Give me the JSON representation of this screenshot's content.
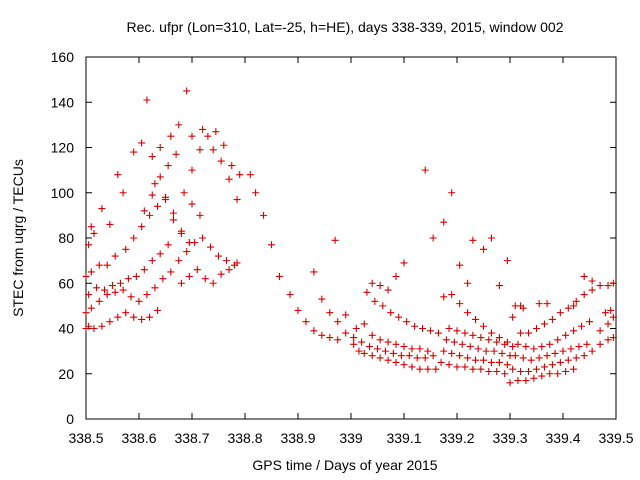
{
  "chart_data": {
    "type": "scatter",
    "title": "Rec. ufpr (Lon=310, Lat=-25, h=HE), days 338-339, 2015, window 002",
    "xlabel": "GPS time / Days of year 2015",
    "ylabel": "STEC from uqrg / TECUs",
    "xlim": [
      338.5,
      339.5
    ],
    "ylim": [
      0,
      160
    ],
    "xticks": [
      "338.5",
      "338.6",
      "338.7",
      "338.8",
      "338.9",
      "339",
      "339.1",
      "339.2",
      "339.3",
      "339.4",
      "339.5"
    ],
    "yticks": [
      "0",
      "20",
      "40",
      "60",
      "80",
      "100",
      "120",
      "140",
      "160"
    ],
    "xtick_values": [
      338.5,
      338.6,
      338.7,
      338.8,
      338.9,
      339.0,
      339.1,
      339.2,
      339.3,
      339.4,
      339.5
    ],
    "ytick_values": [
      0,
      20,
      40,
      60,
      80,
      100,
      120,
      140,
      160
    ],
    "grid": false,
    "marker": "plus",
    "color": "#d40000",
    "series": [
      {
        "points": [
          [
            338.5,
            40
          ],
          [
            338.505,
            41
          ],
          [
            338.515,
            40
          ],
          [
            338.53,
            41
          ],
          [
            338.545,
            43
          ],
          [
            338.56,
            45
          ],
          [
            338.575,
            47
          ],
          [
            338.59,
            45
          ],
          [
            338.605,
            44
          ],
          [
            338.62,
            45
          ],
          [
            338.635,
            48
          ],
          [
            338.5,
            47
          ],
          [
            338.51,
            49
          ],
          [
            338.525,
            52
          ],
          [
            338.54,
            55
          ],
          [
            338.555,
            56
          ],
          [
            338.57,
            57
          ],
          [
            338.585,
            54
          ],
          [
            338.6,
            52
          ],
          [
            338.615,
            55
          ],
          [
            338.63,
            58
          ],
          [
            338.645,
            62
          ],
          [
            338.505,
            55
          ],
          [
            338.52,
            58
          ],
          [
            338.535,
            57
          ],
          [
            338.55,
            59
          ],
          [
            338.565,
            60
          ],
          [
            338.58,
            62
          ],
          [
            338.595,
            63
          ],
          [
            338.61,
            66
          ],
          [
            338.625,
            70
          ],
          [
            338.64,
            73
          ],
          [
            338.655,
            77
          ],
          [
            338.5,
            63
          ],
          [
            338.51,
            65
          ],
          [
            338.525,
            68
          ],
          [
            338.54,
            68
          ],
          [
            338.555,
            72
          ],
          [
            338.575,
            75
          ],
          [
            338.59,
            80
          ],
          [
            338.605,
            85
          ],
          [
            338.62,
            90
          ],
          [
            338.635,
            94
          ],
          [
            338.65,
            97
          ],
          [
            338.505,
            77
          ],
          [
            338.515,
            82
          ],
          [
            338.545,
            86
          ],
          [
            338.57,
            100
          ],
          [
            338.59,
            118
          ],
          [
            338.605,
            122
          ],
          [
            338.625,
            116
          ],
          [
            338.64,
            120
          ],
          [
            338.66,
            125
          ],
          [
            338.675,
            130
          ],
          [
            338.69,
            145
          ],
          [
            338.51,
            85
          ],
          [
            338.53,
            93
          ],
          [
            338.56,
            108
          ],
          [
            338.615,
            141
          ],
          [
            338.63,
            104
          ],
          [
            338.65,
            98
          ],
          [
            338.665,
            91
          ],
          [
            338.68,
            83
          ],
          [
            338.695,
            78
          ],
          [
            338.61,
            92
          ],
          [
            338.625,
            99
          ],
          [
            338.64,
            107
          ],
          [
            338.655,
            112
          ],
          [
            338.67,
            117
          ],
          [
            338.685,
            100
          ],
          [
            338.7,
            95
          ],
          [
            338.715,
            90
          ],
          [
            338.66,
            65
          ],
          [
            338.675,
            70
          ],
          [
            338.69,
            74
          ],
          [
            338.705,
            78
          ],
          [
            338.72,
            80
          ],
          [
            338.735,
            76
          ],
          [
            338.75,
            72
          ],
          [
            338.765,
            70
          ],
          [
            338.78,
            68
          ],
          [
            338.665,
            88
          ],
          [
            338.68,
            82
          ],
          [
            338.7,
            110
          ],
          [
            338.715,
            119
          ],
          [
            338.73,
            125
          ],
          [
            338.745,
            127
          ],
          [
            338.76,
            121
          ],
          [
            338.775,
            112
          ],
          [
            338.79,
            108
          ],
          [
            338.68,
            60
          ],
          [
            338.695,
            63
          ],
          [
            338.71,
            66
          ],
          [
            338.725,
            62
          ],
          [
            338.74,
            60
          ],
          [
            338.755,
            64
          ],
          [
            338.77,
            66
          ],
          [
            338.785,
            69
          ],
          [
            338.7,
            125
          ],
          [
            338.72,
            128
          ],
          [
            338.74,
            119
          ],
          [
            338.755,
            114
          ],
          [
            338.77,
            106
          ],
          [
            338.785,
            97
          ],
          [
            338.81,
            108
          ],
          [
            338.82,
            100
          ],
          [
            338.835,
            90
          ],
          [
            338.85,
            77
          ],
          [
            338.865,
            63
          ],
          [
            338.885,
            55
          ],
          [
            338.9,
            48
          ],
          [
            338.915,
            43
          ],
          [
            338.93,
            39
          ],
          [
            338.945,
            37
          ],
          [
            338.96,
            36
          ],
          [
            338.975,
            35
          ],
          [
            338.99,
            38
          ],
          [
            338.93,
            65
          ],
          [
            338.945,
            53
          ],
          [
            338.96,
            47
          ],
          [
            338.975,
            43
          ],
          [
            338.99,
            46
          ],
          [
            338.97,
            79
          ],
          [
            339.005,
            33
          ],
          [
            339.015,
            30
          ],
          [
            339.025,
            29
          ],
          [
            339.04,
            28
          ],
          [
            339.055,
            27
          ],
          [
            339.07,
            26
          ],
          [
            339.085,
            25
          ],
          [
            339.1,
            24
          ],
          [
            339.115,
            23
          ],
          [
            339.13,
            22
          ],
          [
            339.145,
            22
          ],
          [
            339.16,
            22
          ],
          [
            339.005,
            36
          ],
          [
            339.02,
            34
          ],
          [
            339.035,
            32
          ],
          [
            339.05,
            31
          ],
          [
            339.065,
            30
          ],
          [
            339.08,
            29
          ],
          [
            339.095,
            28
          ],
          [
            339.11,
            28
          ],
          [
            339.125,
            27
          ],
          [
            339.14,
            27
          ],
          [
            339.155,
            28
          ],
          [
            339.01,
            40
          ],
          [
            339.025,
            42
          ],
          [
            339.04,
            37
          ],
          [
            339.055,
            35
          ],
          [
            339.07,
            34
          ],
          [
            339.085,
            33
          ],
          [
            339.1,
            32
          ],
          [
            339.115,
            31
          ],
          [
            339.13,
            31
          ],
          [
            339.145,
            30
          ],
          [
            339.03,
            56
          ],
          [
            339.045,
            52
          ],
          [
            339.06,
            50
          ],
          [
            339.075,
            47
          ],
          [
            339.09,
            45
          ],
          [
            339.105,
            43
          ],
          [
            339.12,
            41
          ],
          [
            339.135,
            40
          ],
          [
            339.15,
            39
          ],
          [
            339.165,
            38
          ],
          [
            339.04,
            60
          ],
          [
            339.055,
            59
          ],
          [
            339.07,
            57
          ],
          [
            339.085,
            63
          ],
          [
            339.1,
            69
          ],
          [
            339.14,
            110
          ],
          [
            339.155,
            80
          ],
          [
            339.175,
            87
          ],
          [
            339.19,
            100
          ],
          [
            339.205,
            68
          ],
          [
            339.22,
            60
          ],
          [
            339.175,
            54
          ],
          [
            339.19,
            55
          ],
          [
            339.205,
            51
          ],
          [
            339.22,
            47
          ],
          [
            339.235,
            44
          ],
          [
            339.25,
            41
          ],
          [
            339.265,
            38
          ],
          [
            339.28,
            36
          ],
          [
            339.295,
            34
          ],
          [
            339.17,
            25
          ],
          [
            339.185,
            24
          ],
          [
            339.2,
            23
          ],
          [
            339.215,
            23
          ],
          [
            339.23,
            22
          ],
          [
            339.245,
            22
          ],
          [
            339.26,
            21
          ],
          [
            339.275,
            21
          ],
          [
            339.29,
            20
          ],
          [
            339.175,
            30
          ],
          [
            339.19,
            29
          ],
          [
            339.205,
            28
          ],
          [
            339.22,
            27
          ],
          [
            339.235,
            26
          ],
          [
            339.25,
            26
          ],
          [
            339.265,
            25
          ],
          [
            339.28,
            25
          ],
          [
            339.295,
            24
          ],
          [
            339.18,
            35
          ],
          [
            339.195,
            34
          ],
          [
            339.21,
            33
          ],
          [
            339.225,
            32
          ],
          [
            339.24,
            31
          ],
          [
            339.255,
            30
          ],
          [
            339.27,
            30
          ],
          [
            339.285,
            29
          ],
          [
            339.3,
            28
          ],
          [
            339.185,
            40
          ],
          [
            339.2,
            39
          ],
          [
            339.215,
            38
          ],
          [
            339.23,
            37
          ],
          [
            339.245,
            36
          ],
          [
            339.26,
            35
          ],
          [
            339.275,
            34
          ],
          [
            339.29,
            33
          ],
          [
            339.305,
            32
          ],
          [
            339.23,
            79
          ],
          [
            339.25,
            75
          ],
          [
            339.265,
            80
          ],
          [
            339.28,
            59
          ],
          [
            339.295,
            70
          ],
          [
            339.305,
            45
          ],
          [
            339.32,
            50
          ],
          [
            339.3,
            16
          ],
          [
            339.315,
            17
          ],
          [
            339.33,
            17
          ],
          [
            339.345,
            18
          ],
          [
            339.36,
            19
          ],
          [
            339.375,
            20
          ],
          [
            339.39,
            20
          ],
          [
            339.405,
            21
          ],
          [
            339.42,
            22
          ],
          [
            339.305,
            22
          ],
          [
            339.32,
            21
          ],
          [
            339.335,
            21
          ],
          [
            339.35,
            22
          ],
          [
            339.365,
            23
          ],
          [
            339.38,
            24
          ],
          [
            339.395,
            25
          ],
          [
            339.41,
            26
          ],
          [
            339.425,
            27
          ],
          [
            339.44,
            28
          ],
          [
            339.31,
            28
          ],
          [
            339.325,
            27
          ],
          [
            339.34,
            26
          ],
          [
            339.355,
            27
          ],
          [
            339.37,
            28
          ],
          [
            339.385,
            29
          ],
          [
            339.4,
            30
          ],
          [
            339.415,
            31
          ],
          [
            339.43,
            32
          ],
          [
            339.445,
            33
          ],
          [
            339.315,
            33
          ],
          [
            339.33,
            32
          ],
          [
            339.345,
            31
          ],
          [
            339.36,
            32
          ],
          [
            339.375,
            33
          ],
          [
            339.39,
            35
          ],
          [
            339.405,
            37
          ],
          [
            339.42,
            39
          ],
          [
            339.435,
            41
          ],
          [
            339.45,
            43
          ],
          [
            339.32,
            38
          ],
          [
            339.335,
            38
          ],
          [
            339.35,
            40
          ],
          [
            339.365,
            42
          ],
          [
            339.38,
            44
          ],
          [
            339.395,
            47
          ],
          [
            339.41,
            49
          ],
          [
            339.425,
            52
          ],
          [
            339.44,
            55
          ],
          [
            339.455,
            57
          ],
          [
            339.31,
            50
          ],
          [
            339.325,
            49
          ],
          [
            339.355,
            51
          ],
          [
            339.37,
            51
          ],
          [
            339.42,
            50
          ],
          [
            339.44,
            63
          ],
          [
            339.455,
            61
          ],
          [
            339.47,
            59
          ],
          [
            339.485,
            59
          ],
          [
            339.495,
            60
          ],
          [
            339.455,
            30
          ],
          [
            339.47,
            33
          ],
          [
            339.485,
            35
          ],
          [
            339.495,
            36
          ],
          [
            339.47,
            39
          ],
          [
            339.485,
            42
          ],
          [
            339.495,
            45
          ],
          [
            339.48,
            47
          ],
          [
            339.49,
            48
          ]
        ]
      }
    ]
  }
}
